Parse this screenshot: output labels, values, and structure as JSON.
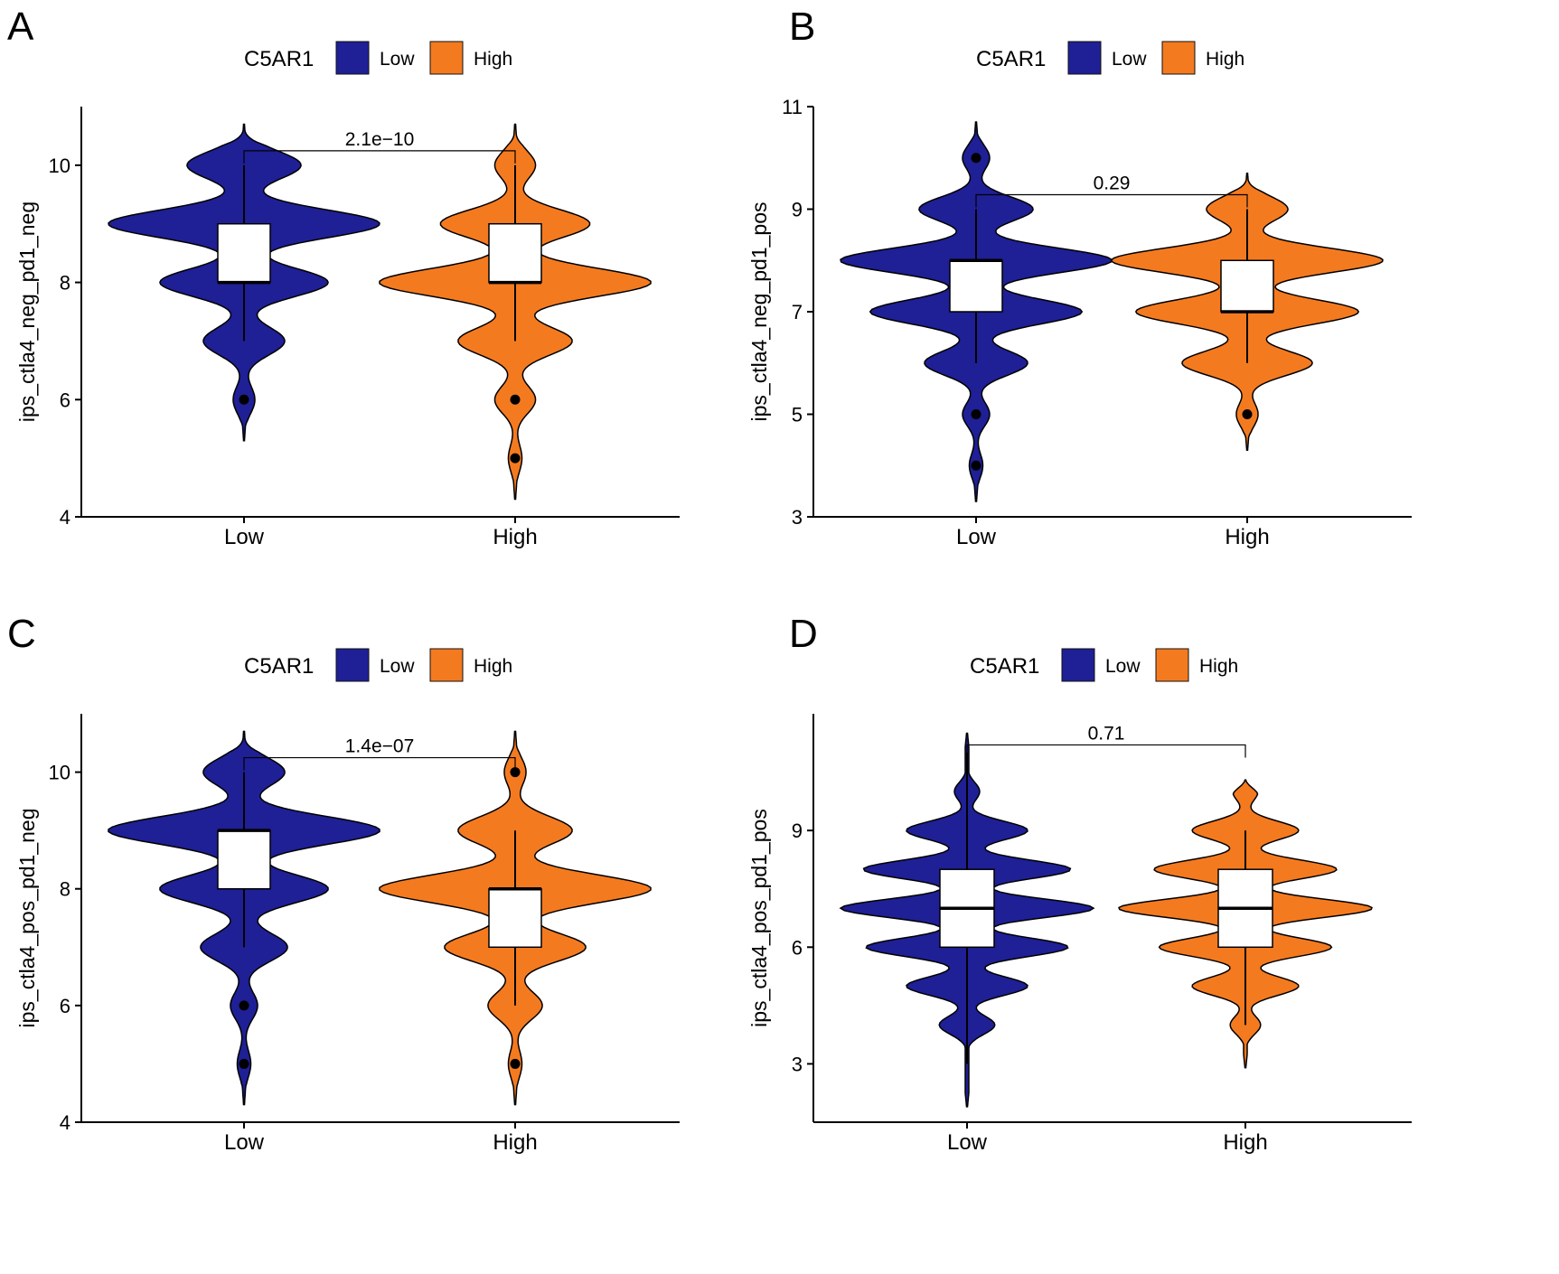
{
  "colors": {
    "Low": "#1f1f96",
    "High": "#f47a20"
  },
  "chart_data": [
    {
      "panel_label": "A",
      "type": "violin",
      "legend_title": "C5AR1",
      "legend_position": "top",
      "categories": [
        "Low",
        "High"
      ],
      "ylabel": "ips_ctla4_neg_pd1_neg",
      "ylim": [
        4,
        11
      ],
      "yticks": [
        "4",
        "6",
        "8",
        "10"
      ],
      "pvalue": "2.1e−10",
      "series": [
        {
          "name": "Low",
          "modes": [
            [
              6,
              0.08
            ],
            [
              7,
              0.3
            ],
            [
              8,
              0.62
            ],
            [
              9,
              1.0
            ],
            [
              10,
              0.42
            ]
          ],
          "range": [
            5.3,
            10.7
          ],
          "box": {
            "min": 7,
            "q1": 8,
            "median": 8,
            "q3": 9,
            "max": 10
          },
          "outliers": [
            6
          ]
        },
        {
          "name": "High",
          "modes": [
            [
              5,
              0.05
            ],
            [
              6,
              0.15
            ],
            [
              7,
              0.42
            ],
            [
              8,
              1.0
            ],
            [
              9,
              0.55
            ],
            [
              10,
              0.15
            ]
          ],
          "range": [
            4.3,
            10.7
          ],
          "box": {
            "min": 7,
            "q1": 8,
            "median": 8,
            "q3": 9,
            "max": 10
          },
          "outliers": [
            6,
            5
          ]
        }
      ]
    },
    {
      "panel_label": "B",
      "type": "violin",
      "legend_title": "C5AR1",
      "legend_position": "top",
      "categories": [
        "Low",
        "High"
      ],
      "ylabel": "ips_ctla4_neg_pd1_pos",
      "ylim": [
        3,
        11
      ],
      "yticks": [
        "3",
        "5",
        "7",
        "9",
        "11"
      ],
      "pvalue": "0.29",
      "series": [
        {
          "name": "Low",
          "modes": [
            [
              4,
              0.05
            ],
            [
              5,
              0.1
            ],
            [
              6,
              0.38
            ],
            [
              7,
              0.78
            ],
            [
              8,
              1.0
            ],
            [
              9,
              0.42
            ],
            [
              10,
              0.1
            ]
          ],
          "range": [
            3.3,
            10.7
          ],
          "box": {
            "min": 6,
            "q1": 7,
            "median": 8,
            "q3": 8,
            "max": 9
          },
          "outliers": [
            10,
            5,
            4
          ]
        },
        {
          "name": "High",
          "modes": [
            [
              5,
              0.08
            ],
            [
              6,
              0.48
            ],
            [
              7,
              0.82
            ],
            [
              8,
              1.0
            ],
            [
              9,
              0.3
            ]
          ],
          "range": [
            4.3,
            9.7
          ],
          "box": {
            "min": 6,
            "q1": 7,
            "median": 7,
            "q3": 8,
            "max": 9
          },
          "outliers": [
            5
          ]
        }
      ]
    },
    {
      "panel_label": "C",
      "type": "violin",
      "legend_title": "C5AR1",
      "legend_position": "top",
      "categories": [
        "Low",
        "High"
      ],
      "ylabel": "ips_ctla4_pos_pd1_neg",
      "ylim": [
        4,
        11
      ],
      "yticks": [
        "4",
        "6",
        "8",
        "10"
      ],
      "pvalue": "1.4e−07",
      "series": [
        {
          "name": "Low",
          "modes": [
            [
              5,
              0.05
            ],
            [
              6,
              0.1
            ],
            [
              7,
              0.32
            ],
            [
              8,
              0.62
            ],
            [
              9,
              1.0
            ],
            [
              10,
              0.3
            ]
          ],
          "range": [
            4.3,
            10.7
          ],
          "box": {
            "min": 7,
            "q1": 8,
            "median": 9,
            "q3": 9,
            "max": 10
          },
          "outliers": [
            6,
            5
          ]
        },
        {
          "name": "High",
          "modes": [
            [
              5,
              0.05
            ],
            [
              6,
              0.2
            ],
            [
              7,
              0.52
            ],
            [
              8,
              1.0
            ],
            [
              9,
              0.42
            ],
            [
              10,
              0.08
            ]
          ],
          "range": [
            4.3,
            10.7
          ],
          "box": {
            "min": 6,
            "q1": 7,
            "median": 8,
            "q3": 8,
            "max": 9
          },
          "outliers": [
            10,
            5
          ]
        }
      ]
    },
    {
      "panel_label": "D",
      "type": "violin",
      "legend_title": "C5AR1",
      "legend_position": "top",
      "categories": [
        "Low",
        "High"
      ],
      "ylabel": "ips_ctla4_pos_pd1_pos",
      "ylim": [
        1.5,
        12
      ],
      "yticks": [
        "3",
        "6",
        "9"
      ],
      "pvalue": "0.71",
      "series": [
        {
          "name": "Low",
          "modes": [
            [
              4,
              0.22
            ],
            [
              5,
              0.48
            ],
            [
              6,
              0.8
            ],
            [
              7,
              1.0
            ],
            [
              8,
              0.82
            ],
            [
              9,
              0.48
            ],
            [
              10,
              0.1
            ]
          ],
          "range": [
            1.9,
            11.5
          ],
          "box": {
            "min": 3,
            "q1": 6,
            "median": 7,
            "q3": 8,
            "max": 11
          },
          "outliers": []
        },
        {
          "name": "High",
          "modes": [
            [
              4,
              0.12
            ],
            [
              5,
              0.42
            ],
            [
              6,
              0.68
            ],
            [
              7,
              1.0
            ],
            [
              8,
              0.72
            ],
            [
              9,
              0.42
            ],
            [
              10,
              0.1
            ]
          ],
          "range": [
            2.9,
            10.3
          ],
          "box": {
            "min": 4,
            "q1": 6,
            "median": 7,
            "q3": 8,
            "max": 9
          },
          "outliers": []
        }
      ]
    }
  ]
}
